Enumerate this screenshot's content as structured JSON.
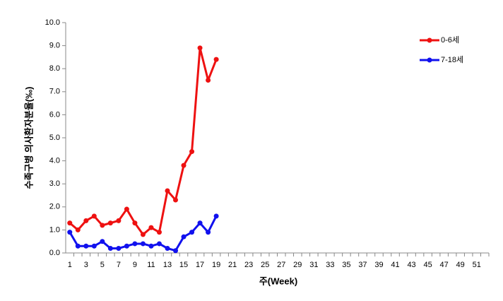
{
  "chart_data": {
    "type": "line",
    "y_label": "수족구병 의사환자분율(‰)",
    "x_label": "주(Week)",
    "categories": [
      "1",
      null,
      "3",
      null,
      "5",
      null,
      "7",
      null,
      "9",
      null,
      "11",
      null,
      "13",
      null,
      "15",
      null,
      "17",
      null,
      "19",
      null,
      "21",
      null,
      "23",
      null,
      "25",
      null,
      "27",
      null,
      "29",
      null,
      "31",
      null,
      "33",
      null,
      "35",
      null,
      "37",
      null,
      "39",
      null,
      "41",
      null,
      "43",
      null,
      "45",
      null,
      "47",
      null,
      "49",
      null,
      "51",
      null
    ],
    "series": [
      {
        "name": "0-6세",
        "color": "#ee1111",
        "values": [
          1.3,
          1.0,
          1.4,
          1.6,
          1.2,
          1.3,
          1.4,
          1.9,
          1.3,
          0.8,
          1.1,
          0.9,
          2.7,
          2.3,
          3.8,
          4.4,
          8.9,
          7.5,
          8.4,
          null,
          null,
          null,
          null,
          null,
          null,
          null,
          null,
          null,
          null,
          null,
          null,
          null,
          null,
          null,
          null,
          null,
          null,
          null,
          null,
          null,
          null,
          null,
          null,
          null,
          null,
          null,
          null,
          null,
          null,
          null,
          null,
          null
        ]
      },
      {
        "name": "7-18세",
        "color": "#1111ee",
        "values": [
          0.9,
          0.3,
          0.3,
          0.3,
          0.5,
          0.2,
          0.2,
          0.3,
          0.4,
          0.4,
          0.3,
          0.4,
          0.2,
          0.1,
          0.7,
          0.9,
          1.3,
          0.9,
          1.6,
          null,
          null,
          null,
          null,
          null,
          null,
          null,
          null,
          null,
          null,
          null,
          null,
          null,
          null,
          null,
          null,
          null,
          null,
          null,
          null,
          null,
          null,
          null,
          null,
          null,
          null,
          null,
          null,
          null,
          null,
          null,
          null,
          null
        ]
      }
    ],
    "ylim": [
      0,
      10
    ],
    "yticks": [
      {
        "value": 0,
        "label": "0.0"
      },
      {
        "value": 1,
        "label": "1.0"
      },
      {
        "value": 2,
        "label": "2.0"
      },
      {
        "value": 3,
        "label": "3.0"
      },
      {
        "value": 4,
        "label": "4.0"
      },
      {
        "value": 5,
        "label": "5.0"
      },
      {
        "value": 6,
        "label": "6.0"
      },
      {
        "value": 7,
        "label": "7.0"
      },
      {
        "value": 8,
        "label": "8.0"
      },
      {
        "value": 9,
        "label": "9.0"
      },
      {
        "value": 10,
        "label": "10.0"
      }
    ],
    "grid": false,
    "legend": "upper-right"
  }
}
